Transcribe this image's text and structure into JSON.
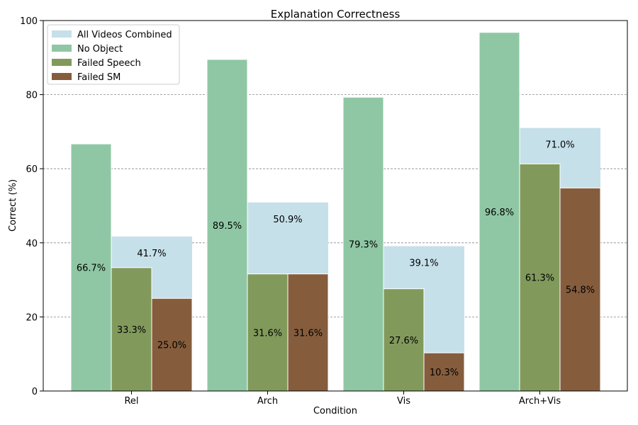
{
  "chart_data": {
    "type": "bar",
    "title": "Explanation Correctness",
    "xlabel": "Condition",
    "ylabel": "Correct (%)",
    "ylim": [
      0,
      100
    ],
    "yticks": [
      0,
      20,
      40,
      60,
      80,
      100
    ],
    "categories": [
      "Rel",
      "Arch",
      "Vis",
      "Arch+Vis"
    ],
    "legend_position": "top-left",
    "grid": "horizontal dashed",
    "combined": {
      "name": "All Videos Combined",
      "color": "#c6e0ea",
      "values": [
        41.7,
        50.9,
        39.1,
        71.0
      ],
      "labels": [
        "41.7%",
        "50.9%",
        "39.1%",
        "71.0%"
      ]
    },
    "series": [
      {
        "name": "No Object",
        "color": "#8fc7a4",
        "values": [
          66.7,
          89.5,
          79.3,
          96.8
        ],
        "labels": [
          "66.7%",
          "89.5%",
          "79.3%",
          "96.8%"
        ]
      },
      {
        "name": "Failed Speech",
        "color": "#819a5c",
        "values": [
          33.3,
          31.6,
          27.6,
          61.3
        ],
        "labels": [
          "33.3%",
          "31.6%",
          "27.6%",
          "61.3%"
        ]
      },
      {
        "name": "Failed SM",
        "color": "#855d3d",
        "values": [
          25.0,
          31.6,
          10.3,
          54.8
        ],
        "labels": [
          "25.0%",
          "31.6%",
          "10.3%",
          "54.8%"
        ]
      }
    ]
  }
}
